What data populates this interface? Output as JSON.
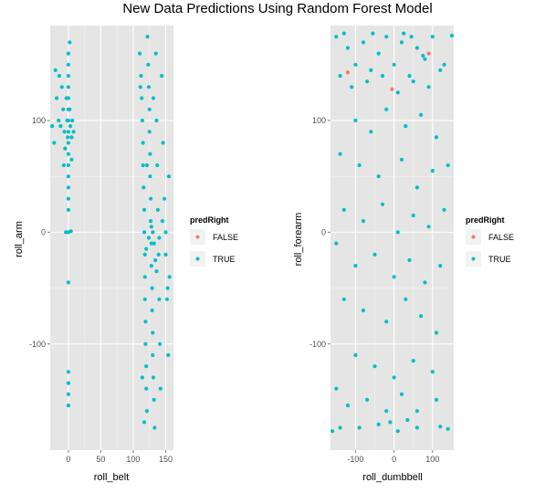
{
  "title": "New Data Predictions Using Random Forest Model",
  "colors": {
    "panel": "#e5e5e5",
    "grid_major": "#ffffff",
    "grid_minor": "#f2f2f2",
    "false": "#f8766d",
    "true": "#00bfc4"
  },
  "chart_data": [
    {
      "type": "scatter",
      "xlabel": "roll_belt",
      "ylabel": "roll_arm",
      "xlim": [
        -28,
        162
      ],
      "ylim": [
        -195,
        185
      ],
      "xticks": [
        0,
        50,
        100,
        150
      ],
      "yticks": [
        -100,
        0,
        100
      ],
      "grid": true,
      "legend": {
        "title": "predRight",
        "placement": "right",
        "entries": [
          "FALSE",
          "TRUE"
        ]
      },
      "series": [
        {
          "name": "FALSE",
          "color": "#f8766d",
          "points": []
        },
        {
          "name": "TRUE",
          "color": "#00bfc4",
          "points": [
            [
              -20,
              145
            ],
            [
              -18,
              120
            ],
            [
              -15,
              100
            ],
            [
              -12,
              95
            ],
            [
              -10,
              130
            ],
            [
              -8,
              110
            ],
            [
              -6,
              90
            ],
            [
              -5,
              75
            ],
            [
              -3,
              120
            ],
            [
              -2,
              100
            ],
            [
              -1,
              85
            ],
            [
              0,
              160
            ],
            [
              0,
              150
            ],
            [
              0,
              140
            ],
            [
              0,
              130
            ],
            [
              0,
              120
            ],
            [
              0,
              110
            ],
            [
              0,
              100
            ],
            [
              0,
              90
            ],
            [
              0,
              80
            ],
            [
              0,
              70
            ],
            [
              0,
              60
            ],
            [
              0,
              50
            ],
            [
              0,
              40
            ],
            [
              0,
              30
            ],
            [
              0,
              20
            ],
            [
              0,
              0
            ],
            [
              0,
              -45
            ],
            [
              0,
              -125
            ],
            [
              0,
              -135
            ],
            [
              0,
              -145
            ],
            [
              0,
              -155
            ],
            [
              2,
              170
            ],
            [
              2,
              110
            ],
            [
              3,
              95
            ],
            [
              5,
              85
            ],
            [
              5,
              65
            ],
            [
              6,
              100
            ],
            [
              8,
              90
            ],
            [
              -22,
              80
            ],
            [
              -25,
              95
            ],
            [
              -14,
              140
            ],
            [
              -7,
              60
            ],
            [
              4,
              1
            ],
            [
              -4,
              0
            ],
            [
              110,
              160
            ],
            [
              112,
              140
            ],
            [
              113,
              120
            ],
            [
              114,
              100
            ],
            [
              115,
              80
            ],
            [
              115,
              60
            ],
            [
              116,
              40
            ],
            [
              117,
              20
            ],
            [
              117,
              0
            ],
            [
              118,
              -20
            ],
            [
              118,
              -40
            ],
            [
              118,
              -60
            ],
            [
              119,
              -80
            ],
            [
              119,
              -100
            ],
            [
              120,
              -120
            ],
            [
              120,
              -140
            ],
            [
              121,
              -160
            ],
            [
              122,
              175
            ],
            [
              123,
              150
            ],
            [
              124,
              130
            ],
            [
              125,
              110
            ],
            [
              125,
              90
            ],
            [
              126,
              70
            ],
            [
              126,
              50
            ],
            [
              127,
              30
            ],
            [
              127,
              10
            ],
            [
              128,
              -10
            ],
            [
              128,
              -30
            ],
            [
              129,
              -50
            ],
            [
              129,
              -70
            ],
            [
              130,
              -90
            ],
            [
              130,
              -110
            ],
            [
              131,
              -130
            ],
            [
              132,
              -150
            ],
            [
              133,
              -175
            ],
            [
              135,
              160
            ],
            [
              136,
              100
            ],
            [
              137,
              60
            ],
            [
              138,
              20
            ],
            [
              139,
              -20
            ],
            [
              140,
              -60
            ],
            [
              141,
              -100
            ],
            [
              142,
              -140
            ],
            [
              144,
              140
            ],
            [
              146,
              80
            ],
            [
              148,
              30
            ],
            [
              150,
              -20
            ],
            [
              152,
              -60
            ],
            [
              154,
              -110
            ],
            [
              155,
              50
            ],
            [
              156,
              -40
            ],
            [
              130,
              0
            ],
            [
              132,
              -10
            ],
            [
              134,
              -25
            ],
            [
              120,
              -15
            ],
            [
              124,
              -5
            ],
            [
              128,
              5
            ],
            [
              136,
              -35
            ],
            [
              140,
              -5
            ],
            [
              145,
              10
            ],
            [
              150,
              0
            ],
            [
              153,
              -50
            ],
            [
              121,
              60
            ],
            [
              131,
              120
            ],
            [
              117,
              -170
            ],
            [
              114,
              -130
            ],
            [
              111,
              130
            ]
          ]
        }
      ]
    },
    {
      "type": "scatter",
      "xlabel": "roll_dumbbell",
      "ylabel": "roll_forearm",
      "xlim": [
        -165,
        155
      ],
      "ylim": [
        -195,
        185
      ],
      "xticks": [
        -100,
        0,
        100
      ],
      "yticks": [
        -100,
        0,
        100
      ],
      "grid": true,
      "legend": {
        "title": "predRight",
        "placement": "right",
        "entries": [
          "FALSE",
          "TRUE"
        ]
      },
      "series": [
        {
          "name": "FALSE",
          "color": "#f8766d",
          "points": [
            [
              -5,
              128
            ],
            [
              -120,
              143
            ],
            [
              90,
              160
            ]
          ]
        },
        {
          "name": "TRUE",
          "color": "#00bfc4",
          "points": [
            [
              -150,
              175
            ],
            [
              -120,
              165
            ],
            [
              -100,
              150
            ],
            [
              -80,
              170
            ],
            [
              -60,
              145
            ],
            [
              -40,
              160
            ],
            [
              -20,
              175
            ],
            [
              0,
              150
            ],
            [
              20,
              170
            ],
            [
              40,
              140
            ],
            [
              60,
              165
            ],
            [
              80,
              155
            ],
            [
              100,
              175
            ],
            [
              130,
              150
            ],
            [
              -140,
              140
            ],
            [
              -110,
              130
            ],
            [
              -70,
              135
            ],
            [
              -30,
              140
            ],
            [
              10,
              125
            ],
            [
              50,
              135
            ],
            [
              90,
              130
            ],
            [
              120,
              145
            ],
            [
              -100,
              100
            ],
            [
              -60,
              90
            ],
            [
              -20,
              110
            ],
            [
              30,
              95
            ],
            [
              70,
              105
            ],
            [
              110,
              85
            ],
            [
              -140,
              70
            ],
            [
              -90,
              60
            ],
            [
              -40,
              50
            ],
            [
              20,
              65
            ],
            [
              60,
              40
            ],
            [
              100,
              55
            ],
            [
              140,
              60
            ],
            [
              -130,
              20
            ],
            [
              -80,
              10
            ],
            [
              -30,
              25
            ],
            [
              10,
              0
            ],
            [
              50,
              15
            ],
            [
              90,
              5
            ],
            [
              130,
              20
            ],
            [
              -150,
              -10
            ],
            [
              -100,
              -30
            ],
            [
              -50,
              -20
            ],
            [
              0,
              -40
            ],
            [
              40,
              -25
            ],
            [
              80,
              -45
            ],
            [
              120,
              -30
            ],
            [
              -130,
              -60
            ],
            [
              -80,
              -70
            ],
            [
              -20,
              -80
            ],
            [
              30,
              -60
            ],
            [
              70,
              -75
            ],
            [
              110,
              -90
            ],
            [
              -100,
              -110
            ],
            [
              -50,
              -120
            ],
            [
              0,
              -130
            ],
            [
              50,
              -115
            ],
            [
              100,
              -125
            ],
            [
              -150,
              -140
            ],
            [
              -120,
              -155
            ],
            [
              -70,
              -150
            ],
            [
              -20,
              -160
            ],
            [
              20,
              -145
            ],
            [
              60,
              -160
            ],
            [
              110,
              -150
            ],
            [
              -140,
              -175
            ],
            [
              -90,
              -175
            ],
            [
              -40,
              -172
            ],
            [
              10,
              -178
            ],
            [
              60,
              -175
            ],
            [
              120,
              -174
            ],
            [
              -160,
              -178
            ],
            [
              140,
              -176
            ],
            [
              -10,
              -170
            ],
            [
              35,
              -168
            ],
            [
              75,
              158
            ],
            [
              45,
              175
            ],
            [
              -130,
              178
            ],
            [
              -55,
              178
            ],
            [
              25,
              178
            ],
            [
              150,
              176
            ]
          ]
        }
      ]
    }
  ]
}
